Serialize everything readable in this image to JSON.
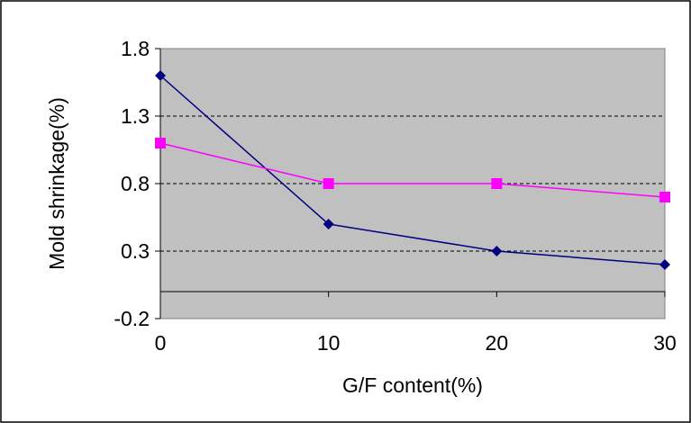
{
  "chart_data": {
    "type": "line",
    "title": "",
    "xlabel": "G/F content(%)",
    "ylabel": "Mold shrinkage(%)",
    "x": [
      0,
      10,
      20,
      30
    ],
    "x_ticks": [
      "0",
      "10",
      "20",
      "30"
    ],
    "y_ticks": [
      "-0.2",
      "0.3",
      "0.8",
      "1.3",
      "1.8"
    ],
    "y_tick_values": [
      -0.2,
      0.3,
      0.8,
      1.3,
      1.8
    ],
    "xlim": [
      0,
      30
    ],
    "ylim": [
      -0.2,
      1.8
    ],
    "zero_line": 0,
    "grid": "horizontal-dashed",
    "legend": "none",
    "plot_background": "#c0c0c0",
    "series": [
      {
        "values": [
          1.6,
          0.5,
          0.3,
          0.2
        ],
        "color": "#000080",
        "marker": "diamond"
      },
      {
        "values": [
          1.1,
          0.8,
          0.8,
          0.7
        ],
        "color": "#ff00ff",
        "marker": "square"
      }
    ]
  }
}
